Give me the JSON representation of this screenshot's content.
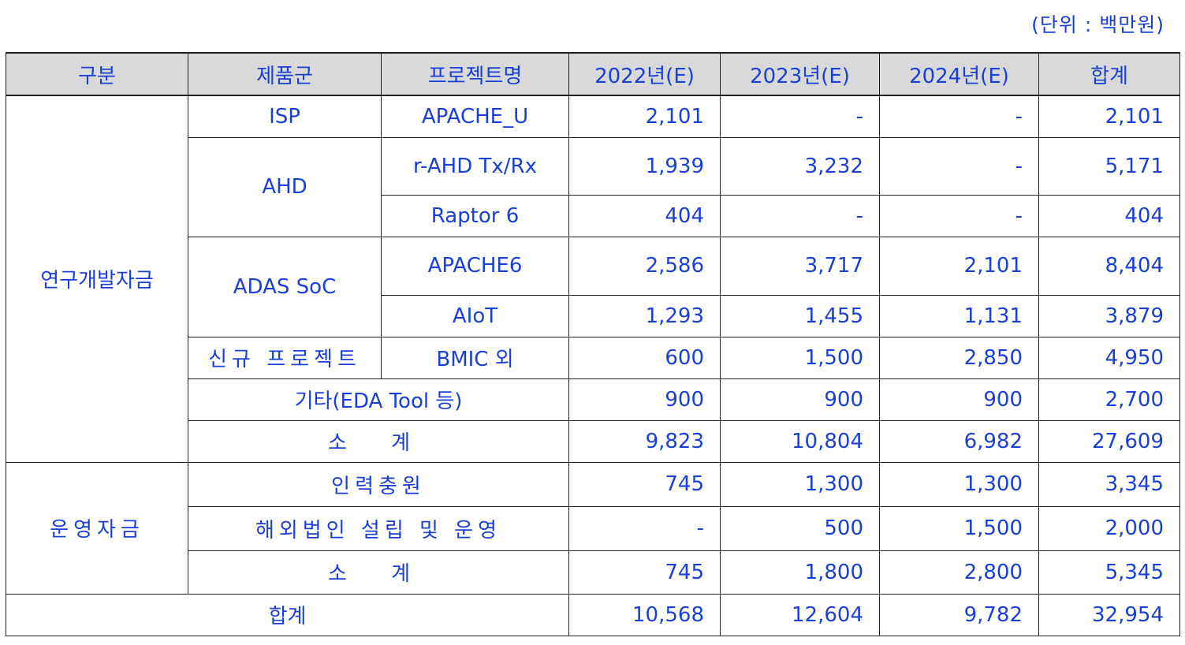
{
  "unit_label": "(단위 : 백만원)",
  "headers": [
    "구분",
    "제품군",
    "프로젝트명",
    "2022년(E)",
    "2023년(E)",
    "2024년(E)",
    "합계"
  ],
  "rd": {
    "category": "연구개발자금",
    "groups": {
      "isp": "ISP",
      "ahd": "AHD",
      "adas": "ADAS SoC",
      "new": "신규 프로젝트"
    },
    "rows": [
      {
        "project": "APACHE_U",
        "v2022": "2,101",
        "v2023": "-",
        "v2024": "-",
        "total": "2,101"
      },
      {
        "project": "r-AHD Tx/Rx",
        "v2022": "1,939",
        "v2023": "3,232",
        "v2024": "-",
        "total": "5,171"
      },
      {
        "project": "Raptor 6",
        "v2022": "404",
        "v2023": "-",
        "v2024": "-",
        "total": "404"
      },
      {
        "project": "APACHE6",
        "v2022": "2,586",
        "v2023": "3,717",
        "v2024": "2,101",
        "total": "8,404"
      },
      {
        "project": "AIoT",
        "v2022": "1,293",
        "v2023": "1,455",
        "v2024": "1,131",
        "total": "3,879"
      },
      {
        "project": "BMIC 외",
        "v2022": "600",
        "v2023": "1,500",
        "v2024": "2,850",
        "total": "4,950"
      }
    ],
    "etc": {
      "label": "기타(EDA Tool 등)",
      "v2022": "900",
      "v2023": "900",
      "v2024": "900",
      "total": "2,700"
    },
    "subtotal": {
      "label": "소 계",
      "v2022": "9,823",
      "v2023": "10,804",
      "v2024": "6,982",
      "total": "27,609"
    }
  },
  "op": {
    "category": "운영자금",
    "rows": [
      {
        "label": "인력충원",
        "v2022": "745",
        "v2023": "1,300",
        "v2024": "1,300",
        "total": "3,345"
      },
      {
        "label": "해외법인 설립 및 운영",
        "v2022": "-",
        "v2023": "500",
        "v2024": "1,500",
        "total": "2,000"
      }
    ],
    "subtotal": {
      "label": "소 계",
      "v2022": "745",
      "v2023": "1,800",
      "v2024": "2,800",
      "total": "5,345"
    }
  },
  "grand_total": {
    "label": "합계",
    "v2022": "10,568",
    "v2023": "12,604",
    "v2024": "9,782",
    "total": "32,954"
  },
  "colors": {
    "text_blue": "#1a3fd6",
    "text_red": "#ee0000",
    "header_bg": "#d9d9d9",
    "border": "#222222"
  }
}
